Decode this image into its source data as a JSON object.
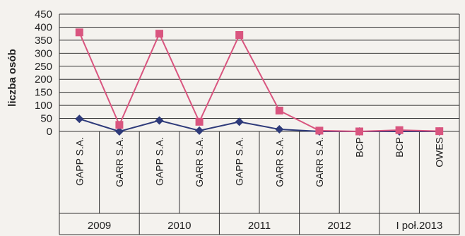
{
  "chart_data": {
    "type": "line",
    "title": "",
    "ylabel": "liczba osób",
    "xlabel": "",
    "ylim": [
      0,
      450
    ],
    "yticks": [
      0,
      50,
      100,
      150,
      200,
      250,
      300,
      350,
      400,
      450
    ],
    "grid": true,
    "categories": [
      "GAPP S.A.",
      "GARR S.A.",
      "GAPP S.A.",
      "GARR S.A.",
      "GAPP S.A.",
      "GARR S.A.",
      "GARR S.A.",
      "BCP",
      "BCP",
      "OWES"
    ],
    "groups": [
      {
        "label": "2009",
        "span": 2
      },
      {
        "label": "2010",
        "span": 2
      },
      {
        "label": "2011",
        "span": 2
      },
      {
        "label": "2012",
        "span": 2
      },
      {
        "label": "I poł.2013",
        "span": 2
      }
    ],
    "series": [
      {
        "color": "#2e3a7a",
        "marker": "diamond",
        "values": [
          48,
          0,
          42,
          3,
          37,
          8,
          0,
          0,
          0,
          0
        ]
      },
      {
        "color": "#d9557f",
        "marker": "square",
        "values": [
          380,
          25,
          375,
          37,
          370,
          80,
          3,
          0,
          5,
          1
        ]
      }
    ]
  }
}
